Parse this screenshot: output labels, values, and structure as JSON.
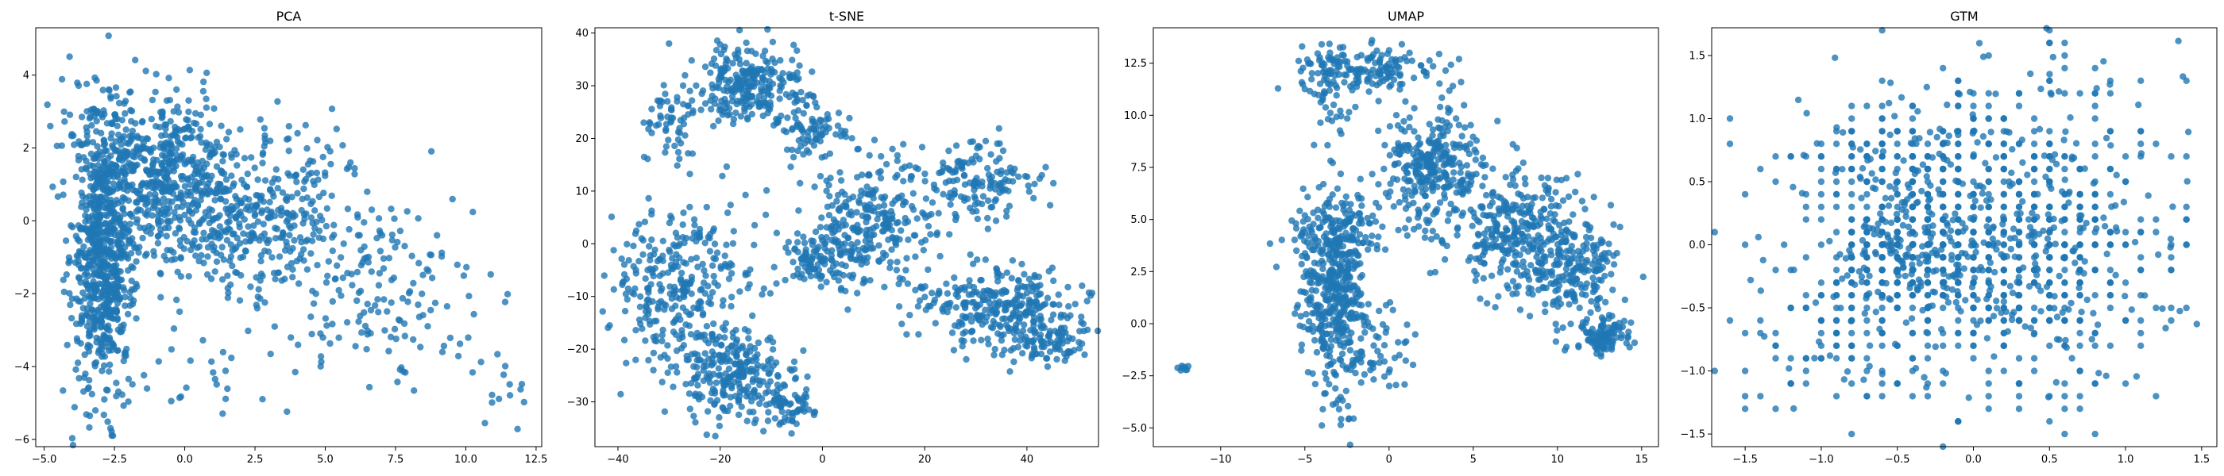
{
  "figure": {
    "point_color": "#1f77b4",
    "point_opacity": 0.8
  },
  "chart_data": [
    {
      "type": "scatter",
      "title": "PCA",
      "xlabel": "",
      "ylabel": "",
      "xlim": [
        -5.3,
        12.7
      ],
      "ylim": [
        -6.2,
        5.3
      ],
      "xticks": [
        -5.0,
        -2.5,
        0.0,
        2.5,
        5.0,
        7.5,
        10.0,
        12.5
      ],
      "xtick_labels": [
        "−5.0",
        "−2.5",
        "0.0",
        "2.5",
        "5.0",
        "7.5",
        "10.0",
        "12.5"
      ],
      "yticks": [
        -6,
        -4,
        -2,
        0,
        2,
        4
      ],
      "ytick_labels": [
        "−6",
        "−4",
        "−2",
        "0",
        "2",
        "4"
      ],
      "grid": false,
      "clusters": [
        {
          "cx": -2.9,
          "cy": -1.0,
          "sx": 0.55,
          "sy": 1.8,
          "n": 700
        },
        {
          "cx": -0.5,
          "cy": 1.2,
          "sx": 1.2,
          "sy": 1.1,
          "n": 450
        },
        {
          "cx": 2.5,
          "cy": 0.2,
          "sx": 2.0,
          "sy": 1.2,
          "n": 400
        },
        {
          "cx": 7.0,
          "cy": -2.0,
          "sx": 1.8,
          "sy": 1.2,
          "n": 150
        },
        {
          "cx": -3.0,
          "cy": 2.5,
          "sx": 1.0,
          "sy": 1.0,
          "n": 80
        },
        {
          "cx": 11.2,
          "cy": -4.6,
          "sx": 0.5,
          "sy": 0.6,
          "n": 14
        },
        {
          "cx": 0.5,
          "cy": -4.3,
          "sx": 1.8,
          "sy": 0.5,
          "n": 25
        }
      ]
    },
    {
      "type": "scatter",
      "title": "t-SNE",
      "xlabel": "",
      "ylabel": "",
      "xlim": [
        -44.5,
        54
      ],
      "ylim": [
        -38.5,
        41
      ],
      "xticks": [
        -40,
        -20,
        0,
        20,
        40
      ],
      "xtick_labels": [
        "−40",
        "−20",
        "0",
        "20",
        "40"
      ],
      "yticks": [
        -30,
        -20,
        -10,
        0,
        10,
        20,
        30,
        40
      ],
      "ytick_labels": [
        "−30",
        "−20",
        "−10",
        "0",
        "10",
        "20",
        "30",
        "40"
      ],
      "grid": false,
      "clusters": [
        {
          "cx": -14,
          "cy": 30,
          "sx": 5,
          "sy": 4,
          "n": 250
        },
        {
          "cx": -2,
          "cy": 22,
          "sx": 3,
          "sy": 3,
          "n": 80
        },
        {
          "cx": -30,
          "cy": 22,
          "sx": 2.5,
          "sy": 5,
          "n": 60
        },
        {
          "cx": -28,
          "cy": -8,
          "sx": 7,
          "sy": 7,
          "n": 300
        },
        {
          "cx": -18,
          "cy": -25,
          "sx": 6,
          "sy": 4,
          "n": 250
        },
        {
          "cx": -7,
          "cy": -32,
          "sx": 3,
          "sy": 2,
          "n": 60
        },
        {
          "cx": 10,
          "cy": 5,
          "sx": 7,
          "sy": 6,
          "n": 250
        },
        {
          "cx": 30,
          "cy": 12,
          "sx": 6,
          "sy": 4,
          "n": 150
        },
        {
          "cx": 35,
          "cy": -12,
          "sx": 9,
          "sy": 4,
          "n": 300
        },
        {
          "cx": 45,
          "cy": -19,
          "sx": 4,
          "sy": 2,
          "n": 80
        },
        {
          "cx": 0,
          "cy": -3,
          "sx": 4,
          "sy": 3,
          "n": 120
        }
      ]
    },
    {
      "type": "scatter",
      "title": "UMAP",
      "xlabel": "",
      "ylabel": "",
      "xlim": [
        -14,
        16
      ],
      "ylim": [
        -5.9,
        14.2
      ],
      "xticks": [
        -10,
        -5,
        0,
        5,
        10,
        15
      ],
      "xtick_labels": [
        "−10",
        "−5",
        "0",
        "5",
        "10",
        "15"
      ],
      "yticks": [
        -5.0,
        -2.5,
        0.0,
        2.5,
        5.0,
        7.5,
        10.0,
        12.5
      ],
      "ytick_labels": [
        "−5.0",
        "−2.5",
        "0.0",
        "2.5",
        "5.0",
        "7.5",
        "10.0",
        "12.5"
      ],
      "grid": false,
      "clusters": [
        {
          "cx": -1.5,
          "cy": 12.1,
          "sx": 2.0,
          "sy": 0.5,
          "n": 150
        },
        {
          "cx": 2.5,
          "cy": 7.5,
          "sx": 1.5,
          "sy": 1.5,
          "n": 300
        },
        {
          "cx": 7.5,
          "cy": 4.5,
          "sx": 2.0,
          "sy": 1.5,
          "n": 300
        },
        {
          "cx": 11,
          "cy": 2.5,
          "sx": 1.5,
          "sy": 1.3,
          "n": 200
        },
        {
          "cx": 12.8,
          "cy": -0.6,
          "sx": 0.8,
          "sy": 0.4,
          "n": 100
        },
        {
          "cx": -3.3,
          "cy": 1.5,
          "sx": 1.0,
          "sy": 2.2,
          "n": 400
        },
        {
          "cx": -3.0,
          "cy": 4.5,
          "sx": 1.5,
          "sy": 0.8,
          "n": 120
        },
        {
          "cx": -1.0,
          "cy": -1.0,
          "sx": 1.2,
          "sy": 1.2,
          "n": 60
        },
        {
          "cx": -3.5,
          "cy": 11.5,
          "sx": 0.6,
          "sy": 1.3,
          "n": 50
        },
        {
          "cx": -2.8,
          "cy": -4.2,
          "sx": 0.3,
          "sy": 0.6,
          "n": 10
        },
        {
          "cx": -12.3,
          "cy": -2.1,
          "sx": 0.15,
          "sy": 0.15,
          "n": 8
        }
      ]
    },
    {
      "type": "scatter",
      "title": "GTM",
      "xlabel": "",
      "ylabel": "",
      "xlim": [
        -1.72,
        1.6
      ],
      "ylim": [
        -1.6,
        1.72
      ],
      "xticks": [
        -1.5,
        -1.0,
        -0.5,
        0.0,
        0.5,
        1.0,
        1.5
      ],
      "xtick_labels": [
        "−1.5",
        "−1.0",
        "−0.5",
        "0.0",
        "0.5",
        "1.0",
        "1.5"
      ],
      "yticks": [
        -1.5,
        -1.0,
        -0.5,
        0.0,
        0.5,
        1.0,
        1.5
      ],
      "ytick_labels": [
        "−1.5",
        "−1.0",
        "−0.5",
        "0.0",
        "0.5",
        "1.0",
        "1.5"
      ],
      "grid": false,
      "lattice_step": 0.1,
      "clusters": [
        {
          "cx": -0.4,
          "cy": -0.1,
          "sx": 0.25,
          "sy": 0.18,
          "n": 400
        },
        {
          "cx": 0.3,
          "cy": -0.1,
          "sx": 0.45,
          "sy": 0.45,
          "n": 500
        },
        {
          "cx": -0.5,
          "cy": 0.6,
          "sx": 0.3,
          "sy": 0.2,
          "n": 150
        },
        {
          "cx": 0.0,
          "cy": 0.0,
          "sx": 0.75,
          "sy": 0.7,
          "n": 500
        },
        {
          "cx": 0.6,
          "cy": 1.1,
          "sx": 0.4,
          "sy": 0.3,
          "n": 60
        },
        {
          "cx": -0.9,
          "cy": -0.8,
          "sx": 0.35,
          "sy": 0.3,
          "n": 100
        }
      ]
    }
  ]
}
